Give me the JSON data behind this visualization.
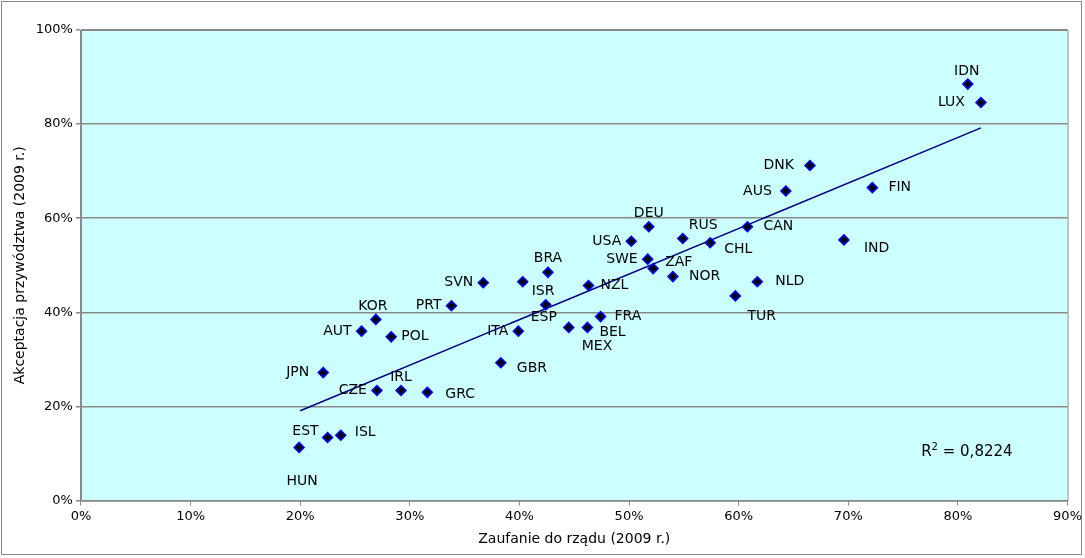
{
  "chart_data": {
    "type": "scatter",
    "xlabel": "Zaufanie do rządu (2009 r.)",
    "ylabel": "Akceptacja przywództwa (2009 r.)",
    "xlim": [
      0,
      90
    ],
    "xticks": [
      {
        "value": 0,
        "label": "0%"
      },
      {
        "value": 10,
        "label": "10%"
      },
      {
        "value": 20,
        "label": "20%"
      },
      {
        "value": 30,
        "label": "30%"
      },
      {
        "value": 40,
        "label": "40%"
      },
      {
        "value": 50,
        "label": "50%"
      },
      {
        "value": 60,
        "label": "60%"
      },
      {
        "value": 70,
        "label": "70%"
      },
      {
        "value": 80,
        "label": "80%"
      },
      {
        "value": 90,
        "label": "90%"
      }
    ],
    "ylim": [
      0,
      100
    ],
    "yticks": [
      {
        "value": 0,
        "label": "0%"
      },
      {
        "value": 20,
        "label": "20%"
      },
      {
        "value": 40,
        "label": "40%"
      },
      {
        "value": 60,
        "label": "60%"
      },
      {
        "value": 80,
        "label": "80%"
      },
      {
        "value": 100,
        "label": "100%"
      }
    ],
    "grid": "y",
    "marker": "diamond",
    "series": [
      {
        "type": "scatter",
        "color": "#0000ff",
        "x": [
          19.9,
          22.5,
          23.7,
          22.1,
          27.0,
          29.2,
          31.6,
          25.6,
          26.9,
          28.3,
          33.8,
          36.7,
          38.3,
          39.9,
          40.3,
          42.6,
          42.4,
          44.5,
          46.2,
          47.4,
          46.3,
          51.8,
          50.2,
          51.7,
          52.2,
          54.9,
          54.0,
          57.4,
          60.8,
          59.7,
          61.7,
          69.6,
          64.3,
          66.5,
          72.2,
          80.9,
          82.1
        ],
        "values": [
          11.3,
          13.4,
          13.9,
          27.2,
          23.4,
          23.4,
          23.0,
          36.0,
          38.5,
          34.8,
          41.4,
          46.3,
          29.3,
          36.0,
          46.5,
          48.5,
          41.6,
          36.8,
          36.8,
          39.1,
          45.7,
          58.2,
          55.1,
          51.3,
          49.3,
          55.7,
          47.6,
          54.8,
          58.2,
          43.5,
          46.5,
          55.4,
          65.8,
          71.2,
          66.5,
          88.5,
          84.6
        ]
      },
      {
        "type": "line",
        "color": "#000080",
        "marker": "none",
        "line_style": "solid",
        "x": [
          20.0,
          82.1
        ],
        "values": [
          19.1,
          79.2
        ]
      }
    ],
    "annotations": [
      {
        "text": "HUN",
        "x": 19.9,
        "y": 11.3
      },
      {
        "text": "EST",
        "x": 22.5,
        "y": 13.4
      },
      {
        "text": "ISL",
        "x": 23.7,
        "y": 13.9
      },
      {
        "text": "JPN",
        "x": 22.1,
        "y": 27.2
      },
      {
        "text": "CZE",
        "x": 27.0,
        "y": 23.4
      },
      {
        "text": "IRL",
        "x": 29.2,
        "y": 23.4
      },
      {
        "text": "GRC",
        "x": 31.6,
        "y": 23.0
      },
      {
        "text": "AUT",
        "x": 25.6,
        "y": 36.0
      },
      {
        "text": "KOR",
        "x": 26.9,
        "y": 38.5
      },
      {
        "text": "POL",
        "x": 28.3,
        "y": 34.8
      },
      {
        "text": "PRT",
        "x": 33.8,
        "y": 41.4
      },
      {
        "text": "SVN",
        "x": 36.7,
        "y": 46.3
      },
      {
        "text": "GBR",
        "x": 38.3,
        "y": 29.3
      },
      {
        "text": "ITA",
        "x": 39.9,
        "y": 36.0
      },
      {
        "text": "ISR",
        "x": 40.3,
        "y": 46.5
      },
      {
        "text": "BRA",
        "x": 42.6,
        "y": 48.5
      },
      {
        "text": "ESP",
        "x": 42.4,
        "y": 41.6
      },
      {
        "text": "MEX",
        "x": 44.5,
        "y": 36.8
      },
      {
        "text": "BEL",
        "x": 46.2,
        "y": 36.8
      },
      {
        "text": "FRA",
        "x": 47.4,
        "y": 39.1
      },
      {
        "text": "NZL",
        "x": 46.3,
        "y": 45.7
      },
      {
        "text": "DEU",
        "x": 51.8,
        "y": 58.2
      },
      {
        "text": "USA",
        "x": 50.2,
        "y": 55.1
      },
      {
        "text": "SWE",
        "x": 51.7,
        "y": 51.3
      },
      {
        "text": "ZAF",
        "x": 52.2,
        "y": 49.3
      },
      {
        "text": "RUS",
        "x": 54.9,
        "y": 55.7
      },
      {
        "text": "NOR",
        "x": 54.0,
        "y": 47.6
      },
      {
        "text": "CHL",
        "x": 57.4,
        "y": 54.8
      },
      {
        "text": "CAN",
        "x": 60.8,
        "y": 58.2
      },
      {
        "text": "TUR",
        "x": 59.7,
        "y": 43.5
      },
      {
        "text": "NLD",
        "x": 61.7,
        "y": 46.5
      },
      {
        "text": "IND",
        "x": 69.6,
        "y": 55.4
      },
      {
        "text": "AUS",
        "x": 64.3,
        "y": 65.8
      },
      {
        "text": "DNK",
        "x": 66.5,
        "y": 71.2
      },
      {
        "text": "FIN",
        "x": 72.2,
        "y": 66.5
      },
      {
        "text": "IDN",
        "x": 80.9,
        "y": 88.5
      },
      {
        "text": "LUX",
        "x": 82.1,
        "y": 84.6
      },
      "R$^{2}$ = 0,8224"
    ]
  }
}
